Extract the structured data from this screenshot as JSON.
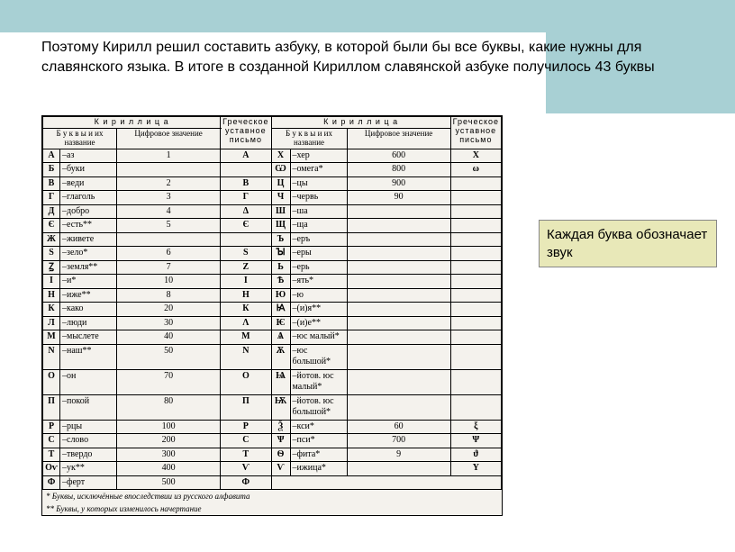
{
  "mainText": "Поэтому Кирилл решил составить азбуку, в которой были бы все буквы, какие нужны для славянского языка. В итоге в созданной Кириллом славянской азбуке получилось 43 буквы",
  "callout": "Каждая буква обозначает звук",
  "headers": {
    "kirillitsa": "К и р и л л и ц а",
    "letters": "Б у к в ы\nи их название",
    "numValue": "Цифровое\nзначение",
    "greek": "Греческое\nуставное\nписьмо"
  },
  "left": [
    {
      "l": "А",
      "n": "–аз",
      "v": "1",
      "g": "Α"
    },
    {
      "l": "Б",
      "n": "–буки",
      "v": "",
      "g": ""
    },
    {
      "l": "В",
      "n": "–веди",
      "v": "2",
      "g": "В"
    },
    {
      "l": "Г",
      "n": "–глаголь",
      "v": "3",
      "g": "Г"
    },
    {
      "l": "Д",
      "n": "–добро",
      "v": "4",
      "g": "Δ"
    },
    {
      "l": "Є",
      "n": "–есть**",
      "v": "5",
      "g": "Є"
    },
    {
      "l": "Ж",
      "n": "–живете",
      "v": "",
      "g": ""
    },
    {
      "l": "Ѕ",
      "n": "–зело*",
      "v": "6",
      "g": "Ѕ"
    },
    {
      "l": "Ꙁ",
      "n": "–земля**",
      "v": "7",
      "g": "Z"
    },
    {
      "l": "І",
      "n": "–и*",
      "v": "10",
      "g": "І"
    },
    {
      "l": "Н",
      "n": "–иже**",
      "v": "8",
      "g": "Н"
    },
    {
      "l": "К",
      "n": "–како",
      "v": "20",
      "g": "К"
    },
    {
      "l": "Л",
      "n": "–люди",
      "v": "30",
      "g": "Λ"
    },
    {
      "l": "М",
      "n": "–мыслете",
      "v": "40",
      "g": "М"
    },
    {
      "l": "N",
      "n": "–наш**",
      "v": "50",
      "g": "N"
    },
    {
      "l": "О",
      "n": "–он",
      "v": "70",
      "g": "О"
    },
    {
      "l": "П",
      "n": "–покой",
      "v": "80",
      "g": "П"
    },
    {
      "l": "Р",
      "n": "–рцы",
      "v": "100",
      "g": "Р"
    },
    {
      "l": "С",
      "n": "–слово",
      "v": "200",
      "g": "С"
    },
    {
      "l": "Т",
      "n": "–твердо",
      "v": "300",
      "g": "Т"
    },
    {
      "l": "Оѵ",
      "n": "–ук**",
      "v": "400",
      "g": "Ѵ"
    },
    {
      "l": "Ф",
      "n": "–ферт",
      "v": "500",
      "g": "Ф"
    }
  ],
  "right": [
    {
      "l": "Х",
      "n": "–хер",
      "v": "600",
      "g": "Х"
    },
    {
      "l": "Ѡ",
      "n": "–омега*",
      "v": "800",
      "g": "ω"
    },
    {
      "l": "Ц",
      "n": "–цы",
      "v": "900",
      "g": ""
    },
    {
      "l": "Ч",
      "n": "–червь",
      "v": "90",
      "g": ""
    },
    {
      "l": "Ш",
      "n": "–ша",
      "v": "",
      "g": ""
    },
    {
      "l": "Щ",
      "n": "–ща",
      "v": "",
      "g": ""
    },
    {
      "l": "Ъ",
      "n": "–еръ",
      "v": "",
      "g": ""
    },
    {
      "l": "Ꙑ",
      "n": "–еры",
      "v": "",
      "g": ""
    },
    {
      "l": "Ь",
      "n": "–ерь",
      "v": "",
      "g": ""
    },
    {
      "l": "Ѣ",
      "n": "–ять*",
      "v": "",
      "g": ""
    },
    {
      "l": "Ю",
      "n": "–ю",
      "v": "",
      "g": ""
    },
    {
      "l": "Ꙗ",
      "n": "–(и)я**",
      "v": "",
      "g": ""
    },
    {
      "l": "Ѥ",
      "n": "–(и)е**",
      "v": "",
      "g": ""
    },
    {
      "l": "Ѧ",
      "n": "–юс малый*",
      "v": "",
      "g": ""
    },
    {
      "l": "Ѫ",
      "n": "–юс\nбольшой*",
      "v": "",
      "g": ""
    },
    {
      "l": "Ѩ",
      "n": "–йотов. юс\nмалый*",
      "v": "",
      "g": ""
    },
    {
      "l": "Ѭ",
      "n": "–йотов. юс\nбольшой*",
      "v": "",
      "g": ""
    },
    {
      "l": "Ѯ",
      "n": "–кси*",
      "v": "60",
      "g": "ξ"
    },
    {
      "l": "Ѱ",
      "n": "–пси*",
      "v": "700",
      "g": "Ψ"
    },
    {
      "l": "Ѳ",
      "n": "–фита*",
      "v": "9",
      "g": "ϑ"
    },
    {
      "l": "Ѵ",
      "n": "–ижица*",
      "v": "",
      "g": "Υ"
    }
  ],
  "footnote1": "* Буквы, исключённые впоследствии из русского алфавита",
  "footnote2": "** Буквы, у которых изменилось начертание"
}
